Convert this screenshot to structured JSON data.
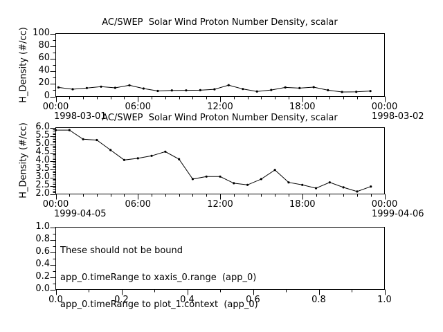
{
  "app": {
    "background_color": "#ffffff",
    "foreground_color": "#000000",
    "line_color": "#000000"
  },
  "chart_data": [
    {
      "type": "line",
      "title": "AC/SWEP  Solar Wind Proton Number Density, scalar",
      "ylabel": "H_Density (#/cc)",
      "x_start": {
        "time": "00:00",
        "date": "1998-03-01"
      },
      "x_end": {
        "time": "00:00",
        "date": "1998-03-02"
      },
      "xlim": [
        0,
        24
      ],
      "xticks": [
        0,
        6,
        12,
        18,
        24
      ],
      "xtick_labels": [
        "00:00",
        "06:00",
        "12:00",
        "18:00",
        "00:00"
      ],
      "x_minor_step": 1,
      "ylim": [
        0,
        100
      ],
      "yticks": [
        0,
        20,
        40,
        60,
        80,
        100
      ],
      "ytick_labels": [
        "0",
        "20",
        "40",
        "60",
        "80",
        "100"
      ],
      "y_minor_step": 10,
      "marker": "filled-circle",
      "line_color": "#000000",
      "x": [
        0.2,
        1.24,
        2.27,
        3.31,
        4.34,
        5.38,
        6.41,
        7.45,
        8.48,
        9.52,
        10.55,
        11.59,
        12.62,
        13.66,
        14.69,
        15.73,
        16.76,
        17.8,
        18.83,
        19.87,
        20.9,
        21.94,
        22.97
      ],
      "y": [
        14.4,
        11.5,
        13.4,
        15.6,
        13.7,
        17.8,
        12.6,
        8.8,
        9.6,
        9.7,
        10.0,
        11.4,
        18.0,
        11.9,
        8.0,
        10.3,
        14.4,
        13.3,
        14.8,
        10.0,
        7.2,
        7.4,
        8.6
      ]
    },
    {
      "type": "line",
      "title": "AC/SWEP  Solar Wind Proton Number Density, scalar",
      "ylabel": "H_Density (#/cc)",
      "x_start": {
        "time": "00:00",
        "date": "1999-04-05"
      },
      "x_end": {
        "time": "00:00",
        "date": "1999-04-06"
      },
      "xlim": [
        0,
        24
      ],
      "xticks": [
        0,
        6,
        12,
        18,
        24
      ],
      "xtick_labels": [
        "00:00",
        "06:00",
        "12:00",
        "18:00",
        "00:00"
      ],
      "x_minor_step": 1,
      "ylim": [
        2.0,
        6.0
      ],
      "yticks": [
        2.0,
        2.5,
        3.0,
        3.5,
        4.0,
        4.5,
        5.0,
        5.5,
        6.0
      ],
      "ytick_labels": [
        "2.0",
        "2.5",
        "3.0",
        "3.5",
        "4.0",
        "4.5",
        "5.0",
        "5.5",
        "6.0"
      ],
      "y_minor_step": 0.1,
      "marker": "filled-circle",
      "line_color": "#000000",
      "x": [
        0,
        1,
        2,
        3,
        4,
        5,
        6,
        7,
        8,
        9,
        10,
        11,
        12,
        13,
        14,
        15,
        16,
        17,
        18,
        19,
        20,
        21,
        22,
        23
      ],
      "y": [
        5.85,
        5.85,
        5.3,
        5.25,
        4.65,
        4.05,
        4.15,
        4.3,
        4.55,
        4.1,
        2.9,
        3.05,
        3.05,
        2.65,
        2.55,
        2.9,
        3.45,
        2.7,
        2.55,
        2.35,
        2.7,
        2.4,
        2.15,
        2.45
      ]
    },
    {
      "type": "line",
      "title": "",
      "ylabel": "",
      "annotation": [
        "These should not be bound",
        "app_0.timeRange to xaxis_0.range  (app_0)",
        "app_0.timeRange to plot_1.context  (app_0)"
      ],
      "xlim": [
        0,
        1
      ],
      "xticks": [
        0,
        0.2,
        0.4,
        0.6,
        0.8,
        1
      ],
      "xtick_labels": [
        "0.0",
        "0.2",
        "0.4",
        "0.6",
        "0.8",
        "1.0"
      ],
      "x_minor_step": 0.1,
      "ylim": [
        0,
        1
      ],
      "yticks": [
        0,
        0.2,
        0.4,
        0.6,
        0.8,
        1
      ],
      "ytick_labels": [
        "0.0",
        "0.2",
        "0.4",
        "0.6",
        "0.8",
        "1.0"
      ],
      "y_minor_step": 0.1,
      "x": [],
      "y": []
    }
  ]
}
